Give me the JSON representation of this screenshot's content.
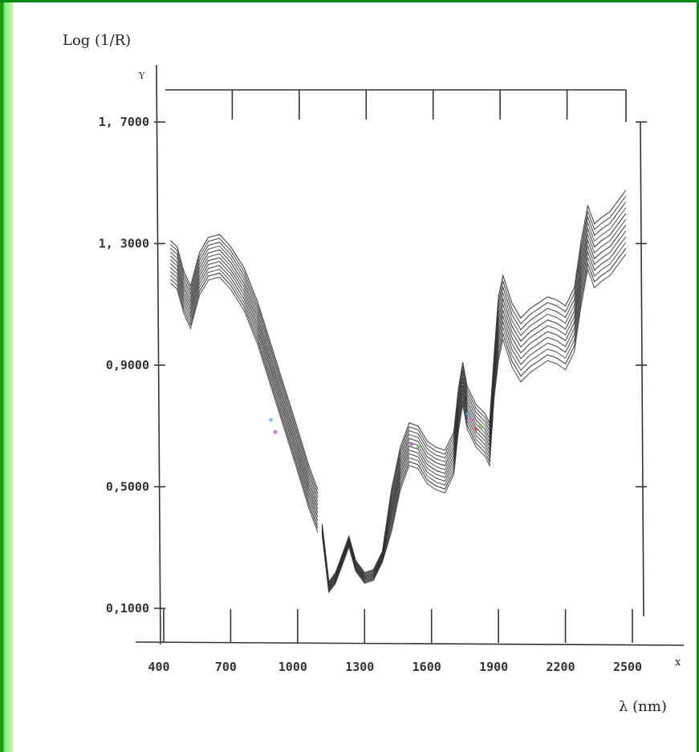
{
  "chart_data": {
    "type": "line",
    "ylabel": "Log (1/R)",
    "y_axis_letter": "Y",
    "xlabel": "λ (nm)",
    "x_axis_letter": "x",
    "xlim": [
      400,
      2500
    ],
    "ylim": [
      0.1,
      1.7
    ],
    "x_ticks": [
      400,
      700,
      1000,
      1300,
      1600,
      1900,
      2200,
      2500
    ],
    "x_tick_labels": [
      "400",
      "700",
      "1000",
      "1300",
      "1600",
      "1900",
      "2200",
      "2500"
    ],
    "y_ticks": [
      0.1,
      0.5,
      0.9,
      1.3,
      1.7
    ],
    "y_tick_labels": [
      "0,1000",
      "0,5000",
      "0,9000",
      "1, 3000",
      "1, 7000"
    ],
    "grid": false,
    "legend": "none",
    "curve_count": 12,
    "band_spread": 0.14,
    "base_curve": {
      "x": [
        430,
        460,
        490,
        520,
        560,
        600,
        650,
        700,
        760,
        820,
        880,
        940,
        1000,
        1050,
        1090,
        1110,
        1140,
        1170,
        1200,
        1230,
        1260,
        1300,
        1340,
        1380,
        1420,
        1460,
        1500,
        1540,
        1580,
        1620,
        1660,
        1700,
        1720,
        1740,
        1760,
        1800,
        1840,
        1860,
        1880,
        1900,
        1920,
        1960,
        2000,
        2040,
        2080,
        2120,
        2160,
        2200,
        2240,
        2270,
        2300,
        2330,
        2360,
        2400,
        2440,
        2470
      ],
      "y": [
        1.24,
        1.22,
        1.14,
        1.09,
        1.2,
        1.25,
        1.26,
        1.22,
        1.15,
        1.04,
        0.9,
        0.76,
        0.62,
        0.5,
        0.42,
        0.36,
        0.17,
        0.2,
        0.26,
        0.32,
        0.24,
        0.2,
        0.21,
        0.27,
        0.42,
        0.56,
        0.64,
        0.63,
        0.58,
        0.56,
        0.55,
        0.61,
        0.75,
        0.84,
        0.76,
        0.7,
        0.67,
        0.64,
        0.86,
        1.02,
        1.09,
        1.0,
        0.95,
        0.98,
        1.0,
        1.02,
        1.01,
        0.99,
        1.05,
        1.2,
        1.32,
        1.26,
        1.28,
        1.3,
        1.34,
        1.37
      ]
    }
  }
}
